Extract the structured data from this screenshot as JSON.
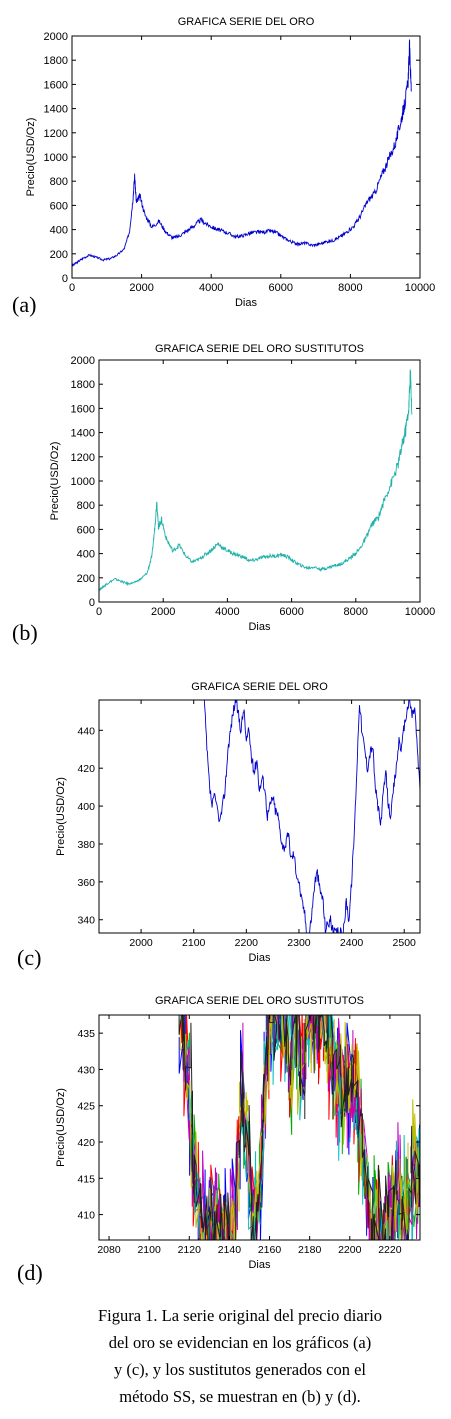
{
  "chart_data": [
    {
      "type": "line",
      "panel_label": "(a)",
      "title": "GRAFICA SERIE DEL ORO",
      "xlabel": "Dias",
      "ylabel": "Precio(USD/Oz)",
      "xlim": [
        0,
        10000
      ],
      "ylim": [
        0,
        2000
      ],
      "xticks": [
        0,
        2000,
        4000,
        6000,
        8000,
        10000
      ],
      "yticks": [
        0,
        200,
        400,
        600,
        800,
        1000,
        1200,
        1400,
        1600,
        1800,
        2000
      ],
      "series": [
        {
          "color": "#0000cc",
          "x": [
            0,
            150,
            300,
            500,
            700,
            900,
            1100,
            1300,
            1500,
            1650,
            1750,
            1800,
            1850,
            1950,
            2100,
            2300,
            2500,
            2700,
            2900,
            3100,
            3300,
            3500,
            3700,
            3900,
            4100,
            4300,
            4500,
            4700,
            4900,
            5100,
            5300,
            5500,
            5700,
            5900,
            6100,
            6300,
            6500,
            6700,
            6900,
            7100,
            7300,
            7500,
            7700,
            7900,
            8100,
            8300,
            8500,
            8700,
            8900,
            9100,
            9300,
            9450,
            9550,
            9650,
            9700,
            9750
          ],
          "y": [
            100,
            130,
            160,
            190,
            170,
            150,
            160,
            190,
            240,
            380,
            650,
            840,
            620,
            680,
            520,
            420,
            470,
            380,
            330,
            350,
            390,
            430,
            480,
            440,
            410,
            390,
            370,
            340,
            350,
            370,
            380,
            380,
            390,
            370,
            330,
            300,
            280,
            290,
            270,
            280,
            300,
            310,
            340,
            380,
            430,
            520,
            640,
            700,
            850,
            980,
            1120,
            1300,
            1420,
            1600,
            1900,
            1550
          ]
        }
      ]
    },
    {
      "type": "line",
      "panel_label": "(b)",
      "title": "GRAFICA SERIE DEL ORO SUSTITUTOS",
      "xlabel": "Dias",
      "ylabel": "Precio(USD/Oz)",
      "xlim": [
        0,
        10000
      ],
      "ylim": [
        0,
        2000
      ],
      "xticks": [
        0,
        2000,
        4000,
        6000,
        8000,
        10000
      ],
      "yticks": [
        0,
        200,
        400,
        600,
        800,
        1000,
        1200,
        1400,
        1600,
        1800,
        2000
      ],
      "series": [
        {
          "color": "#20b2aa",
          "x": [
            0,
            150,
            300,
            500,
            700,
            900,
            1100,
            1300,
            1500,
            1650,
            1750,
            1800,
            1850,
            1950,
            2100,
            2300,
            2500,
            2700,
            2900,
            3100,
            3300,
            3500,
            3700,
            3900,
            4100,
            4300,
            4500,
            4700,
            4900,
            5100,
            5300,
            5500,
            5700,
            5900,
            6100,
            6300,
            6500,
            6700,
            6900,
            7100,
            7300,
            7500,
            7700,
            7900,
            8100,
            8300,
            8500,
            8700,
            8900,
            9100,
            9300,
            9450,
            9550,
            9650,
            9700,
            9750
          ],
          "y": [
            100,
            130,
            160,
            190,
            170,
            150,
            160,
            190,
            240,
            380,
            650,
            840,
            620,
            680,
            520,
            420,
            470,
            380,
            330,
            350,
            390,
            430,
            480,
            440,
            410,
            390,
            370,
            340,
            350,
            370,
            380,
            380,
            390,
            370,
            330,
            300,
            280,
            290,
            270,
            280,
            300,
            310,
            340,
            380,
            430,
            520,
            640,
            700,
            850,
            980,
            1120,
            1300,
            1420,
            1600,
            1900,
            1550
          ]
        }
      ]
    },
    {
      "type": "line",
      "panel_label": "(c)",
      "title": "GRAFICA SERIE DEL ORO",
      "xlabel": "Dias",
      "ylabel": "Precio(USD/Oz)",
      "xlim": [
        1920,
        2530
      ],
      "ylim": [
        333,
        456
      ],
      "xticks": [
        2000,
        2100,
        2200,
        2300,
        2400,
        2500
      ],
      "yticks": [
        340,
        360,
        380,
        400,
        420,
        440
      ],
      "series": [
        {
          "color": "#0000cc",
          "x": [
            2120,
            2125,
            2130,
            2135,
            2140,
            2150,
            2155,
            2160,
            2165,
            2170,
            2175,
            2180,
            2185,
            2190,
            2195,
            2200,
            2205,
            2210,
            2215,
            2220,
            2225,
            2230,
            2235,
            2240,
            2245,
            2250,
            2255,
            2260,
            2265,
            2270,
            2275,
            2280,
            2285,
            2290,
            2295,
            2300,
            2305,
            2310,
            2315,
            2320,
            2325,
            2330,
            2335,
            2340,
            2345,
            2350,
            2355,
            2360,
            2365,
            2370,
            2375,
            2380,
            2385,
            2390,
            2395,
            2400,
            2405,
            2410,
            2415,
            2420,
            2425,
            2430,
            2435,
            2440,
            2445,
            2450,
            2455,
            2460,
            2465,
            2470,
            2475,
            2480,
            2485,
            2490,
            2495,
            2500,
            2505,
            2510,
            2515,
            2520,
            2525,
            2530
          ],
          "y": [
            456,
            430,
            410,
            400,
            405,
            392,
            400,
            410,
            430,
            440,
            450,
            456,
            448,
            440,
            452,
            434,
            440,
            425,
            418,
            425,
            408,
            415,
            410,
            395,
            400,
            405,
            398,
            395,
            385,
            378,
            380,
            385,
            372,
            375,
            365,
            360,
            350,
            345,
            333,
            333,
            345,
            360,
            365,
            355,
            352,
            335,
            338,
            340,
            333,
            333,
            333,
            333,
            335,
            350,
            340,
            360,
            385,
            420,
            456,
            438,
            430,
            420,
            428,
            432,
            410,
            400,
            390,
            405,
            418,
            400,
            395,
            410,
            420,
            435,
            430,
            442,
            450,
            456,
            448,
            452,
            430,
            408
          ]
        }
      ]
    },
    {
      "type": "line",
      "panel_label": "(d)",
      "title": "GRAFICA SERIE DEL ORO SUSTITUTOS",
      "xlabel": "Dias",
      "ylabel": "Precio(USD/Oz)",
      "xlim": [
        2075,
        2235
      ],
      "ylim": [
        406.5,
        437.5
      ],
      "xticks": [
        2080,
        2100,
        2120,
        2140,
        2160,
        2180,
        2200,
        2220
      ],
      "yticks": [
        410,
        415,
        420,
        425,
        430,
        435
      ],
      "series_colors": [
        "#0000ff",
        "#00aa00",
        "#ff0000",
        "#00bfbf",
        "#bf00bf",
        "#bfbf00",
        "#202020"
      ],
      "base": {
        "x": [
          2116,
          2119,
          2122,
          2125,
          2128,
          2131,
          2134,
          2137,
          2140,
          2143,
          2146,
          2149,
          2152,
          2155,
          2158,
          2161,
          2164,
          2167,
          2170,
          2173,
          2176,
          2179,
          2182,
          2185,
          2188,
          2191,
          2194,
          2197,
          2200,
          2203,
          2206,
          2209,
          2212,
          2215,
          2218,
          2221,
          2224,
          2227,
          2230,
          2233,
          2235
        ],
        "y": [
          437.5,
          430,
          418,
          412,
          408,
          406.5,
          410,
          407,
          406.5,
          412,
          426,
          420,
          410,
          414,
          432,
          437.5,
          436,
          437.5,
          430,
          437.5,
          428,
          437.5,
          437.5,
          437.5,
          437.5,
          432,
          428,
          426,
          430,
          428,
          420,
          412,
          406.5,
          408,
          406.5,
          410,
          414,
          410,
          412,
          416,
          412
        ]
      }
    }
  ],
  "caption": {
    "lines": [
      "Figura 1. La serie original del precio diario",
      "del oro se evidencian en los gráficos (a)",
      "y (c), y los sustitutos  generados con  el",
      "método SS, se muestran en (b) y (d)."
    ]
  }
}
